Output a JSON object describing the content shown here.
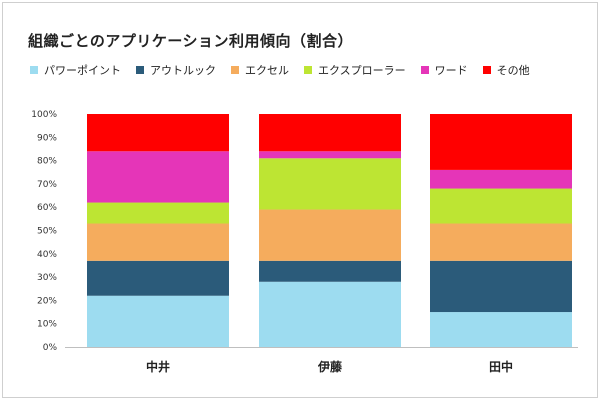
{
  "chart_data": {
    "type": "bar",
    "stacked": true,
    "percent": true,
    "title": "組織ごとのアプリケーション利用傾向（割合）",
    "xlabel": "",
    "ylabel": "",
    "ylim": [
      0,
      100
    ],
    "yticks": [
      "0%",
      "10%",
      "20%",
      "30%",
      "40%",
      "50%",
      "60%",
      "70%",
      "80%",
      "90%",
      "100%"
    ],
    "grid": false,
    "legend_position": "top",
    "categories": [
      "中井",
      "伊藤",
      "田中"
    ],
    "series": [
      {
        "name": "パワーポイント",
        "color": "#9ddcf0",
        "values": [
          22,
          28,
          15
        ]
      },
      {
        "name": "アウトルック",
        "color": "#2b5b7a",
        "values": [
          15,
          9,
          22
        ]
      },
      {
        "name": "エクセル",
        "color": "#f5ac5d",
        "values": [
          16,
          22,
          16
        ]
      },
      {
        "name": "エクスプローラー",
        "color": "#bde533",
        "values": [
          9,
          22,
          15
        ]
      },
      {
        "name": "ワード",
        "color": "#e535b8",
        "values": [
          22,
          3,
          8
        ]
      },
      {
        "name": "その他",
        "color": "#ff0000",
        "values": [
          16,
          16,
          24
        ]
      }
    ]
  }
}
